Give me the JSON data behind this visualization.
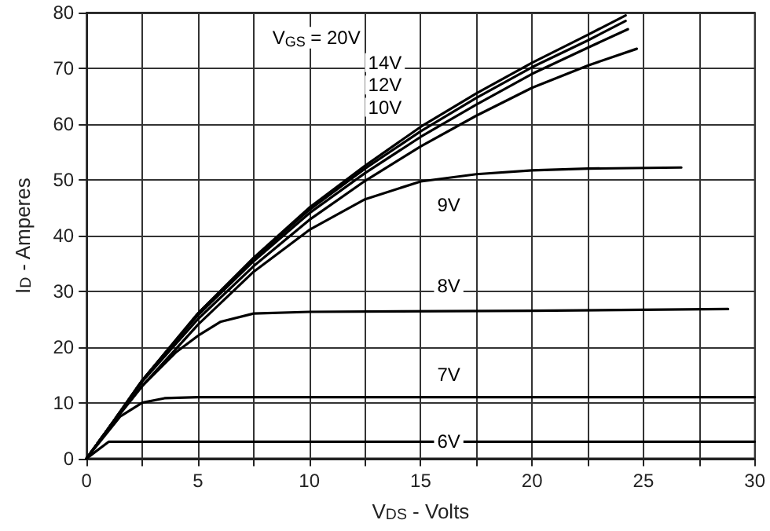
{
  "chart_data": {
    "type": "line",
    "xlabel": "V$_{DS}$ - Volts",
    "ylabel": "I$_{D}$ - Amperes",
    "xlim": [
      0,
      30
    ],
    "ylim": [
      0,
      80
    ],
    "xticks": [
      0,
      {
        "value": 2.5,
        "label": null
      },
      5,
      {
        "value": 7.5,
        "label": null
      },
      10,
      {
        "value": 12.5,
        "label": null
      },
      15,
      {
        "value": 17.5,
        "label": null
      },
      20,
      {
        "value": 22.5,
        "label": null
      },
      25,
      {
        "value": 27.5,
        "label": null
      },
      30
    ],
    "yticks": [
      0,
      10,
      20,
      30,
      40,
      50,
      60,
      70,
      80
    ],
    "annotations": [
      "V$_{GS}$ = 20V",
      "14V",
      "12V",
      "10V"
    ],
    "grid": true,
    "marker": "none",
    "line_style": "solid",
    "legend": false,
    "series": [
      {
        "color": "#000000",
        "x": [
          0,
          1,
          2.5,
          5,
          7.5,
          10,
          12.5,
          15,
          17.5,
          20,
          22.5,
          24.2
        ],
        "values": [
          0,
          5.5,
          14,
          26,
          36,
          45,
          52.5,
          59.5,
          65.5,
          71,
          76,
          79.5
        ]
      },
      {
        "color": "#000000",
        "x": [
          0,
          1,
          2.5,
          5,
          7.5,
          10,
          12.5,
          15,
          17.5,
          20,
          22.5,
          24.2
        ],
        "values": [
          0,
          5.5,
          14,
          26,
          35.8,
          44.6,
          52,
          58.7,
          64.7,
          70.2,
          75,
          78.5
        ]
      },
      {
        "color": "#000000",
        "x": [
          0,
          1,
          2.5,
          5,
          7.5,
          10,
          12.5,
          15,
          17.5,
          20,
          22.5,
          24.3
        ],
        "values": [
          0,
          5.5,
          14,
          25.7,
          35.4,
          44,
          51.2,
          57.7,
          63.5,
          69,
          73.7,
          77
        ]
      },
      {
        "color": "#000000",
        "x": [
          0,
          1,
          2.5,
          5,
          7.5,
          10,
          12.5,
          15,
          17.5,
          20,
          22.5,
          24.7
        ],
        "values": [
          0,
          5.5,
          13.8,
          25,
          34.5,
          42.8,
          49.8,
          56,
          61.5,
          66.5,
          70.5,
          73.5
        ]
      },
      {
        "name": "9V",
        "color": "#000000",
        "x": [
          0,
          1,
          2.5,
          5,
          7.5,
          10,
          12.5,
          15,
          17.5,
          20,
          22.5,
          26.7
        ],
        "values": [
          0,
          5.5,
          13,
          24,
          33.5,
          41,
          46.5,
          49.7,
          51,
          51.7,
          52,
          52.2
        ]
      },
      {
        "name": "8V",
        "color": "#000000",
        "x": [
          0,
          1,
          2.5,
          4,
          5,
          6,
          7.5,
          10,
          20,
          28.8
        ],
        "values": [
          0,
          5.5,
          13,
          19,
          22,
          24.5,
          26,
          26.3,
          26.5,
          26.8
        ]
      },
      {
        "name": "7V",
        "color": "#000000",
        "x": [
          0,
          1.5,
          2.5,
          3.5,
          5,
          30
        ],
        "values": [
          0,
          7.5,
          10,
          10.8,
          11,
          11
        ]
      },
      {
        "name": "6V",
        "color": "#000000",
        "x": [
          0,
          1,
          30
        ],
        "values": [
          0,
          3,
          3
        ]
      }
    ]
  }
}
